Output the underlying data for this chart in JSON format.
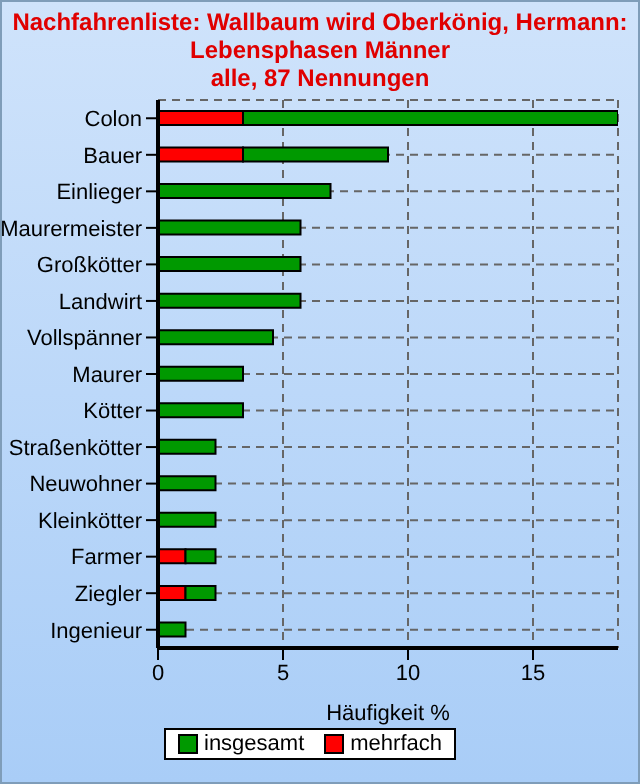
{
  "chart_data": {
    "type": "bar",
    "orientation": "horizontal",
    "stacked": true,
    "title": "Nachfahrenliste: Wallbaum wird Oberkönig, Hermann:\nLebensphasen Männer\nalle, 87 Nennungen",
    "xlabel": "Häufigkeit %",
    "categories": [
      "Colon",
      "Bauer",
      "Einlieger",
      "Maurermeister",
      "Großkötter",
      "Landwirt",
      "Vollspänner",
      "Maurer",
      "Kötter",
      "Straßenkötter",
      "Neuwohner",
      "Kleinkötter",
      "Farmer",
      "Ziegler",
      "Ingenieur"
    ],
    "series": [
      {
        "name": "mehrfach",
        "color": "#ff0000",
        "values": [
          3.4,
          3.4,
          null,
          null,
          null,
          null,
          null,
          null,
          null,
          null,
          null,
          null,
          1.1,
          1.1,
          null
        ]
      },
      {
        "name": "insgesamt",
        "color": "#009900",
        "values": [
          15.0,
          5.8,
          6.9,
          5.7,
          5.7,
          5.7,
          4.6,
          3.4,
          3.4,
          2.3,
          2.3,
          2.3,
          1.2,
          1.2,
          1.1
        ]
      }
    ],
    "xlim": [
      0,
      18.4
    ],
    "xticks": [
      0,
      5,
      10,
      15
    ],
    "grid": true,
    "legend": "bottom"
  }
}
